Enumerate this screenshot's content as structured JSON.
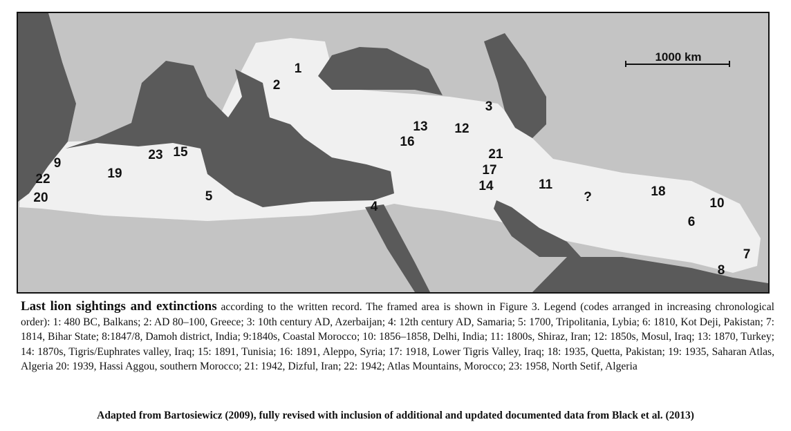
{
  "map": {
    "scale_bar_label": "1000 km",
    "colors": {
      "sea": "#5a5a5a",
      "land": "#c4c4c4",
      "lion_range": "#f0f0f0"
    },
    "sites": [
      {
        "code": "1"
      },
      {
        "code": "2"
      },
      {
        "code": "3"
      },
      {
        "code": "4"
      },
      {
        "code": "5"
      },
      {
        "code": "6"
      },
      {
        "code": "7"
      },
      {
        "code": "8"
      },
      {
        "code": "9"
      },
      {
        "code": "10"
      },
      {
        "code": "11"
      },
      {
        "code": "12"
      },
      {
        "code": "13"
      },
      {
        "code": "14"
      },
      {
        "code": "15"
      },
      {
        "code": "16"
      },
      {
        "code": "17"
      },
      {
        "code": "18"
      },
      {
        "code": "19"
      },
      {
        "code": "20"
      },
      {
        "code": "21"
      },
      {
        "code": "22"
      },
      {
        "code": "23"
      },
      {
        "code": "?"
      }
    ]
  },
  "caption": {
    "title": "Last lion sightings and extinctions",
    "text": " according to the written record. The framed area is shown in Figure 3. Legend (codes arranged in increasing chronological order): 1: 480 BC, Balkans; 2: AD 80–100, Greece; 3: 10th century AD, Azerbaijan; 4: 12th century AD, Samaria; 5: 1700, Tripolitania, Lybia; 6: 1810, Kot Deji, Pakistan; 7: 1814, Bihar State; 8:1847/8, Damoh district, India;  9:1840s, Coastal Morocco; 10: 1856–1858, Delhi, India;  11: 1800s, Shiraz, Iran;  12: 1850s, Mosul, Iraq;  13: 1870, Turkey;   14: 1870s, Tigris/Euphrates valley, Iraq; 15: 1891, Tunisia; 16: 1891, Aleppo, Syria; 17: 1918, Lower Tigris Valley, Iraq; 18: 1935, Quetta, Pakistan; 19: 1935, Saharan Atlas, Algeria 20: 1939, Hassi Aggou, southern Morocco;  21: 1942, Dizful, Iran;   22: 1942; Atlas Mountains, Morocco;  23: 1958, North Setif, Algeria",
    "credit": "Adapted from Bartosiewicz (2009), fully revised with inclusion of additional and updated documented data from Black et al. (2013)"
  }
}
